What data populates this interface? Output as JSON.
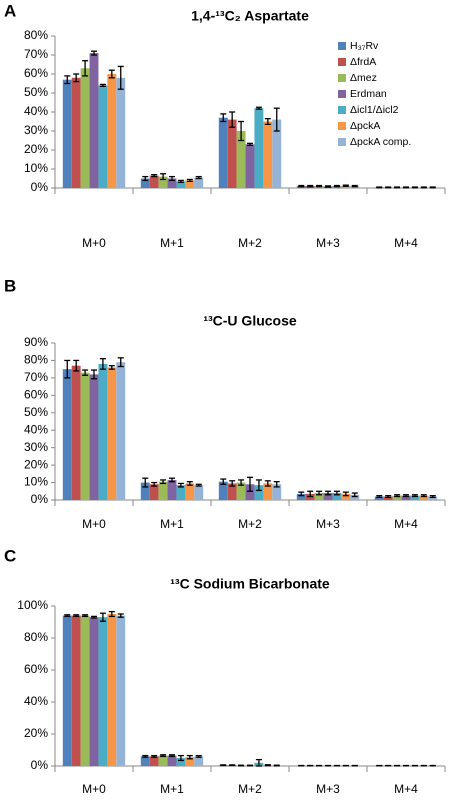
{
  "chart_data": [
    {
      "type": "bar",
      "label": "A",
      "title": "1,4-¹³C₂ Aspartate",
      "categories": [
        "M+0",
        "M+1",
        "M+2",
        "M+3",
        "M+4"
      ],
      "ylim": [
        0,
        80
      ],
      "yticks": [
        {
          "value": 0,
          "label": "0%"
        },
        {
          "value": 10,
          "label": "10%"
        },
        {
          "value": 20,
          "label": "20%"
        },
        {
          "value": 30,
          "label": "30%"
        },
        {
          "value": 40,
          "label": "40%"
        },
        {
          "value": 50,
          "label": "50%"
        },
        {
          "value": 60,
          "label": "60%"
        },
        {
          "value": 70,
          "label": "70%"
        },
        {
          "value": 80,
          "label": "80%"
        }
      ],
      "legend": "top-right",
      "series": [
        {
          "name": "H₃₇Rv",
          "color": "#4f81bd",
          "values": [
            57,
            5,
            37,
            1,
            0.3
          ],
          "errors": [
            2,
            1,
            2,
            0.3,
            0.2
          ]
        },
        {
          "name": "ΔfrdA",
          "color": "#c0504d",
          "values": [
            58,
            6.5,
            36,
            1,
            0.3
          ],
          "errors": [
            2,
            0.5,
            4,
            0.3,
            0.2
          ]
        },
        {
          "name": "Δmez",
          "color": "#9bbb59",
          "values": [
            63,
            6,
            30,
            1,
            0.3
          ],
          "errors": [
            4,
            1.5,
            5,
            0.3,
            0.2
          ]
        },
        {
          "name": "Erdman",
          "color": "#8064a2",
          "values": [
            71,
            5,
            23,
            0.8,
            0.3
          ],
          "errors": [
            1,
            1,
            0.5,
            0.3,
            0.2
          ]
        },
        {
          "name": "Δicl1/Δicl2",
          "color": "#4bacc6",
          "values": [
            54,
            3.5,
            42,
            1,
            0.3
          ],
          "errors": [
            0.5,
            0.5,
            0.5,
            0.3,
            0.2
          ]
        },
        {
          "name": "ΔpckA",
          "color": "#f79646",
          "values": [
            60,
            4,
            35,
            1.2,
            0.3
          ],
          "errors": [
            2,
            0.5,
            1.5,
            0.3,
            0.2
          ]
        },
        {
          "name": "ΔpckA comp.",
          "color": "#95b3d7",
          "values": [
            58,
            5.5,
            36,
            1,
            0.3
          ],
          "errors": [
            6,
            0.5,
            6,
            0.3,
            0.2
          ]
        }
      ]
    },
    {
      "type": "bar",
      "label": "B",
      "title": "¹³C-U Glucose",
      "categories": [
        "M+0",
        "M+1",
        "M+2",
        "M+3",
        "M+4"
      ],
      "ylim": [
        0,
        90
      ],
      "yticks": [
        {
          "value": 0,
          "label": "0%"
        },
        {
          "value": 10,
          "label": "10%"
        },
        {
          "value": 20,
          "label": "20%"
        },
        {
          "value": 30,
          "label": "30%"
        },
        {
          "value": 40,
          "label": "40%"
        },
        {
          "value": 50,
          "label": "50%"
        },
        {
          "value": 60,
          "label": "60%"
        },
        {
          "value": 70,
          "label": "70%"
        },
        {
          "value": 80,
          "label": "80%"
        },
        {
          "value": 90,
          "label": "90%"
        }
      ],
      "series": [
        {
          "color": "#4f81bd",
          "values": [
            75,
            10,
            10.5,
            3.5,
            2
          ],
          "errors": [
            5,
            2.5,
            1.5,
            1,
            0.5
          ]
        },
        {
          "color": "#c0504d",
          "values": [
            77,
            9,
            9.5,
            3.5,
            2
          ],
          "errors": [
            3,
            1,
            1.5,
            1.5,
            0.5
          ]
        },
        {
          "color": "#9bbb59",
          "values": [
            73,
            10.5,
            10,
            4,
            2.5
          ],
          "errors": [
            1.5,
            1,
            1.5,
            1,
            0.5
          ]
        },
        {
          "color": "#8064a2",
          "values": [
            72,
            11.5,
            9,
            4,
            2.5
          ],
          "errors": [
            2.5,
            1,
            4,
            1,
            0.5
          ]
        },
        {
          "color": "#4bacc6",
          "values": [
            78,
            8.5,
            8.5,
            4,
            2.5
          ],
          "errors": [
            3,
            1,
            3,
            1,
            0.5
          ]
        },
        {
          "color": "#f79646",
          "values": [
            76,
            9.5,
            9.5,
            3.5,
            2.5
          ],
          "errors": [
            1,
            1,
            1.5,
            1,
            0.5
          ]
        },
        {
          "color": "#95b3d7",
          "values": [
            79,
            8.5,
            9,
            3,
            2
          ],
          "errors": [
            2.5,
            0.5,
            1.5,
            1,
            0.5
          ]
        }
      ]
    },
    {
      "type": "bar",
      "label": "C",
      "title": "¹³C Sodium Bicarbonate",
      "categories": [
        "M+0",
        "M+1",
        "M+2",
        "M+3",
        "M+4"
      ],
      "ylim": [
        0,
        100
      ],
      "yticks": [
        {
          "value": 0,
          "label": "0%"
        },
        {
          "value": 20,
          "label": "20%"
        },
        {
          "value": 40,
          "label": "40%"
        },
        {
          "value": 60,
          "label": "60%"
        },
        {
          "value": 80,
          "label": "80%"
        },
        {
          "value": 100,
          "label": "100%"
        }
      ],
      "series": [
        {
          "color": "#4f81bd",
          "values": [
            94,
            6,
            0.5,
            0.2,
            0.2
          ],
          "errors": [
            0.5,
            0.5,
            0.2,
            0.1,
            0.1
          ]
        },
        {
          "color": "#c0504d",
          "values": [
            94,
            6,
            0.5,
            0.2,
            0.2
          ],
          "errors": [
            0.5,
            0.5,
            0.2,
            0.1,
            0.1
          ]
        },
        {
          "color": "#9bbb59",
          "values": [
            94,
            6.5,
            0.3,
            0.2,
            0.2
          ],
          "errors": [
            0.5,
            0.5,
            0.2,
            0.1,
            0.1
          ]
        },
        {
          "color": "#8064a2",
          "values": [
            93,
            6.5,
            0.3,
            0.2,
            0.2
          ],
          "errors": [
            0.5,
            0.5,
            0.2,
            0.1,
            0.1
          ]
        },
        {
          "color": "#4bacc6",
          "values": [
            93,
            5,
            2,
            0.2,
            0.2
          ],
          "errors": [
            2.5,
            1.5,
            2,
            0.1,
            0.1
          ]
        },
        {
          "color": "#f79646",
          "values": [
            95,
            5.5,
            0.5,
            0.2,
            0.2
          ],
          "errors": [
            1.5,
            1,
            0.3,
            0.1,
            0.1
          ]
        },
        {
          "color": "#95b3d7",
          "values": [
            94,
            6,
            0.3,
            0.2,
            0.2
          ],
          "errors": [
            1,
            0.5,
            0.2,
            0.1,
            0.1
          ]
        }
      ]
    }
  ]
}
